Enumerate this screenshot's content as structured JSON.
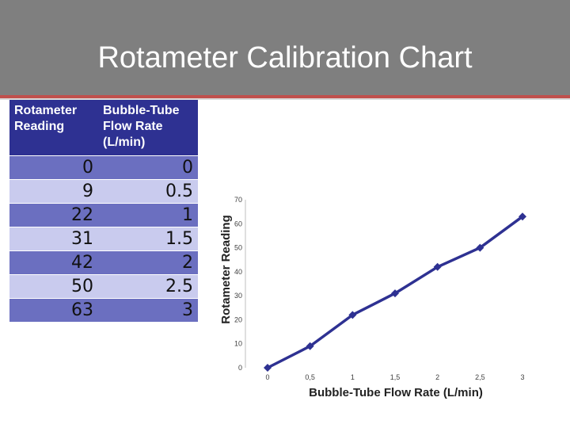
{
  "slide": {
    "title": "Rotameter Calibration Chart",
    "title_bar_color": "#7f7f7f",
    "accent_color": "#c0504d"
  },
  "table": {
    "headers": [
      "Rotameter Reading",
      "Bubble-Tube Flow Rate (L/min)"
    ],
    "rows": [
      [
        "0",
        "0"
      ],
      [
        "9",
        "0.5"
      ],
      [
        "22",
        "1"
      ],
      [
        "31",
        "1.5"
      ],
      [
        "42",
        "2"
      ],
      [
        "50",
        "2.5"
      ],
      [
        "63",
        "3"
      ]
    ],
    "header_color": "#2e3192"
  },
  "chart_data": {
    "type": "line",
    "x": [
      0,
      0.5,
      1,
      1.5,
      2,
      2.5,
      3
    ],
    "series": [
      {
        "values": [
          0,
          9,
          22,
          31,
          42,
          50,
          63
        ],
        "color": "#2e3192"
      }
    ],
    "xlabel": "Bubble-Tube Flow Rate (L/min)",
    "ylabel": "Rotameter Reading",
    "xlim": [
      0,
      3
    ],
    "ylim": [
      0,
      70
    ],
    "xticks": [
      "0",
      "0,5",
      "1",
      "1,5",
      "2",
      "2,5",
      "3"
    ],
    "yticks": [
      "0",
      "10",
      "20",
      "30",
      "40",
      "50",
      "60",
      "70"
    ],
    "marker": "diamond",
    "grid": false
  }
}
